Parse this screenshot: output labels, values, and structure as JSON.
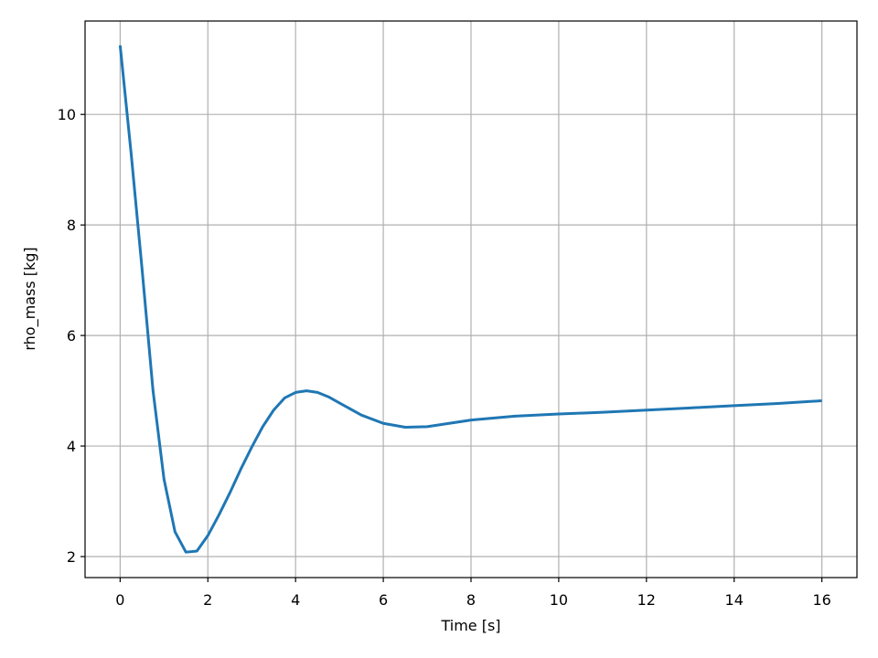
{
  "chart_data": {
    "type": "line",
    "xlabel": "Time [s]",
    "ylabel": "rho_mass [kg]",
    "x": [
      0,
      0.25,
      0.5,
      0.75,
      1.0,
      1.25,
      1.5,
      1.75,
      2.0,
      2.25,
      2.5,
      2.75,
      3.0,
      3.25,
      3.5,
      3.75,
      4.0,
      4.25,
      4.5,
      4.75,
      5.0,
      5.5,
      6.0,
      6.5,
      7.0,
      7.5,
      8.0,
      9.0,
      10,
      11,
      12,
      13,
      14,
      15,
      16
    ],
    "series": [
      {
        "name": "rho_mass",
        "color": "#1f77b4",
        "values": [
          11.25,
          9.3,
          7.2,
          5.0,
          3.4,
          2.45,
          2.08,
          2.1,
          2.38,
          2.75,
          3.15,
          3.58,
          3.98,
          4.35,
          4.65,
          4.87,
          4.97,
          5.0,
          4.97,
          4.89,
          4.78,
          4.56,
          4.41,
          4.34,
          4.35,
          4.41,
          4.47,
          4.54,
          4.58,
          4.61,
          4.65,
          4.69,
          4.73,
          4.77,
          4.82
        ]
      }
    ],
    "xlim": [
      -0.8,
      16.8
    ],
    "ylim": [
      1.62,
      11.69
    ],
    "xticks": [
      0,
      2,
      4,
      6,
      8,
      10,
      12,
      14,
      16
    ],
    "yticks": [
      2,
      4,
      6,
      8,
      10
    ],
    "grid": true
  }
}
